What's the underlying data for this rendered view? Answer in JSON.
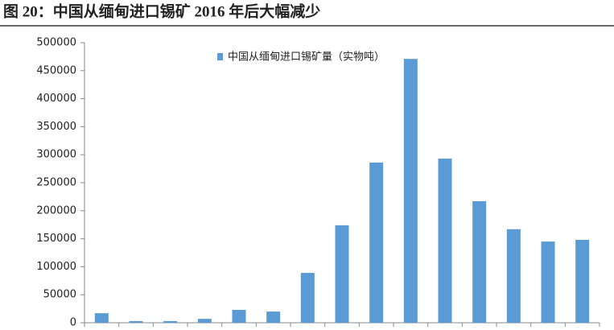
{
  "chart_data": {
    "type": "bar",
    "title": "图 20：中国从缅甸进口锡矿 2016 年后大幅减少",
    "categories": [
      null,
      null,
      null,
      null,
      null,
      null,
      null,
      null,
      null,
      null,
      null,
      null,
      null,
      null,
      null
    ],
    "series": [
      {
        "name": "中国从缅甸进口锡矿量（实物吨）",
        "color": "#5b9bd5",
        "values": [
          17000,
          3000,
          3000,
          7000,
          23000,
          20000,
          89000,
          174000,
          286000,
          471000,
          293000,
          217000,
          167000,
          145000,
          148000
        ]
      }
    ],
    "ylim": [
      0,
      500000
    ],
    "yticks": [
      0,
      50000,
      100000,
      150000,
      200000,
      250000,
      300000,
      350000,
      400000,
      450000,
      500000
    ],
    "legend": "top"
  }
}
